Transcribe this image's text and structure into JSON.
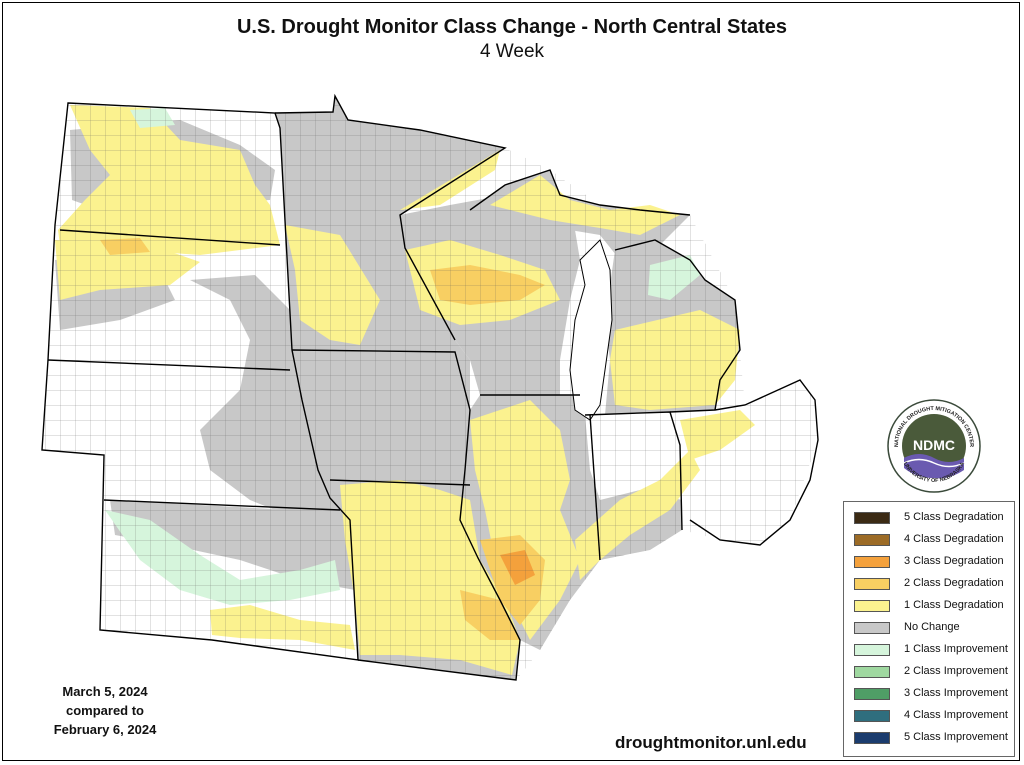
{
  "title": "U.S. Drought Monitor Class Change - North Central States",
  "subtitle": "4 Week",
  "legend": [
    {
      "label": "5 Class Degradation",
      "color": "#3b2a14"
    },
    {
      "label": "4 Class Degradation",
      "color": "#9c6b26"
    },
    {
      "label": "3 Class Degradation",
      "color": "#f4a13c"
    },
    {
      "label": "2 Class Degradation",
      "color": "#f8cf62"
    },
    {
      "label": "1 Class Degradation",
      "color": "#fbf28f"
    },
    {
      "label": "No Change",
      "color": "#c8c8c8"
    },
    {
      "label": "1 Class Improvement",
      "color": "#d6f5dc"
    },
    {
      "label": "2 Class Improvement",
      "color": "#9fd8a0"
    },
    {
      "label": "3 Class Improvement",
      "color": "#4f9e66"
    },
    {
      "label": "4 Class Improvement",
      "color": "#2f6e7e"
    },
    {
      "label": "5 Class Improvement",
      "color": "#1b3c6e"
    }
  ],
  "date": {
    "line1": "March 5, 2024",
    "line2": "compared to",
    "line3": "February 6, 2024"
  },
  "source": "droughtmonitor.unl.edu",
  "logo": {
    "abbr": "NDMC",
    "ring_top": "NATIONAL DROUGHT MITIGATION CENTER",
    "ring_bottom": "UNIVERSITY OF NEBRASKA"
  }
}
